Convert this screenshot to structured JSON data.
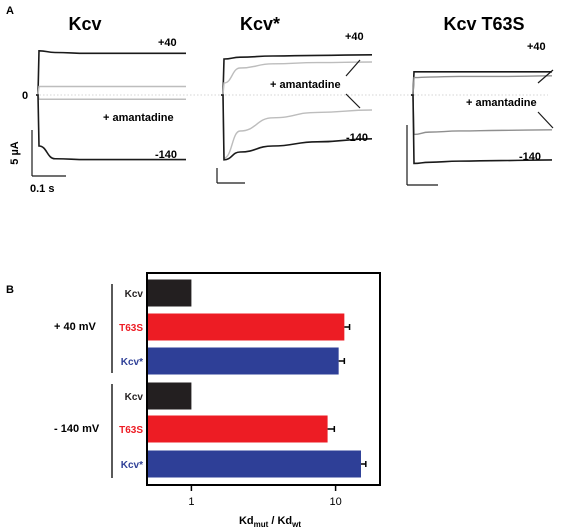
{
  "panel_a": {
    "letter": "A",
    "titles": [
      "Kcv",
      "Kcv*",
      "Kcv T63S"
    ],
    "zero_label": "0",
    "amantadine_label": "+ amantadine",
    "voltage_pos": "+40",
    "voltage_neg": "-140",
    "scale_y_label": "5 µA",
    "scale_x_label": "0.1 s"
  },
  "panel_b": {
    "letter": "B",
    "group_labels": [
      "+ 40 mV",
      "- 140 mV"
    ],
    "bar_labels": [
      "Kcv",
      "T63S",
      "Kcv*",
      "Kcv",
      "T63S",
      "Kcv*"
    ],
    "xlabel_main": "Kd",
    "xlabel_sub1": "mut",
    "xlabel_sep": " / Kd",
    "xlabel_sub2": "wt"
  },
  "colors": {
    "Kcv": "#231f20",
    "T63S": "#ed1c24",
    "Kcv*": "#2e3f97",
    "trace_dark": "#1a1a1a",
    "trace_light": "#bdbdbd",
    "trace_mid": "#8f8f8f"
  },
  "chart_data": [
    {
      "type": "line",
      "panel": "A",
      "title": "Kcv",
      "series": [
        {
          "name": "+40",
          "values": [
            0.0,
            5.2,
            5.0,
            4.9,
            4.9,
            4.9
          ]
        },
        {
          "name": "+ amantadine",
          "values": [
            0.0,
            1.0,
            1.0,
            1.0,
            1.0,
            1.0
          ]
        },
        {
          "name": "+ amantadine",
          "values": [
            0.0,
            -0.5,
            -0.5,
            -0.5,
            -0.5,
            -0.5
          ]
        },
        {
          "name": "-140",
          "values": [
            0.0,
            -6.0,
            -7.5,
            -7.6,
            -7.6,
            -7.6
          ]
        }
      ]
    },
    {
      "type": "line",
      "panel": "A",
      "title": "Kcv*",
      "series": [
        {
          "name": "+40",
          "values": [
            0.0,
            6.0,
            6.3,
            6.5,
            6.6,
            6.7
          ]
        },
        {
          "name": "+ amantadine",
          "values": [
            0.0,
            2.0,
            4.5,
            5.2,
            5.4,
            5.5
          ]
        },
        {
          "name": "+ amantadine",
          "values": [
            0.0,
            -10.5,
            -6.0,
            -3.8,
            -2.9,
            -2.5
          ]
        },
        {
          "name": "-140",
          "values": [
            0.0,
            -10.8,
            -9.5,
            -8.5,
            -7.8,
            -7.3
          ]
        }
      ]
    },
    {
      "type": "line",
      "panel": "A",
      "title": "Kcv T63S",
      "series": [
        {
          "name": "+40",
          "values": [
            0.0,
            4.0,
            4.0,
            4.0,
            4.0,
            4.0
          ]
        },
        {
          "name": "+ amantadine",
          "values": [
            0.0,
            3.0,
            3.1,
            3.2,
            3.2,
            3.3
          ]
        },
        {
          "name": "+ amantadine",
          "values": [
            0.0,
            -6.8,
            -6.4,
            -6.2,
            -6.1,
            -6.0
          ]
        },
        {
          "name": "-140",
          "values": [
            0.0,
            -11.8,
            -11.6,
            -11.4,
            -11.3,
            -11.2
          ]
        }
      ]
    },
    {
      "type": "bar",
      "panel": "B",
      "orientation": "horizontal",
      "xscale": "log",
      "xlim": [
        0.5,
        20
      ],
      "xticks": [
        1,
        10
      ],
      "xlabel": "Kdmut / Kdwt",
      "groups": [
        "+ 40 mV",
        "- 140 mV"
      ],
      "categories": [
        "Kcv",
        "T63S",
        "Kcv*",
        "Kcv",
        "T63S",
        "Kcv*"
      ],
      "values": [
        1.0,
        11.5,
        10.5,
        1.0,
        8.8,
        15.0
      ],
      "errors": [
        0,
        1.0,
        1.0,
        0,
        1.0,
        1.2
      ]
    }
  ]
}
